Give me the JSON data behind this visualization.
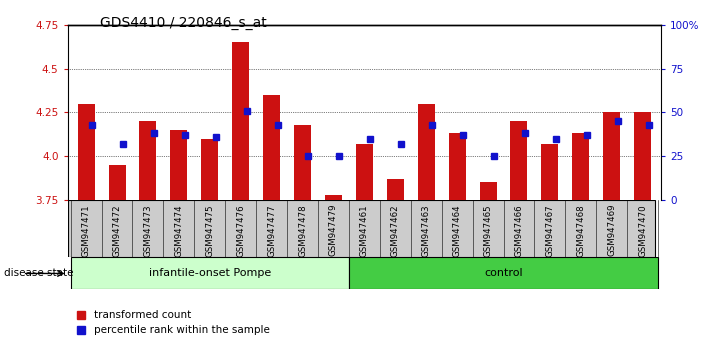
{
  "title": "GDS4410 / 220846_s_at",
  "samples": [
    "GSM947471",
    "GSM947472",
    "GSM947473",
    "GSM947474",
    "GSM947475",
    "GSM947476",
    "GSM947477",
    "GSM947478",
    "GSM947479",
    "GSM947461",
    "GSM947462",
    "GSM947463",
    "GSM947464",
    "GSM947465",
    "GSM947466",
    "GSM947467",
    "GSM947468",
    "GSM947469",
    "GSM947470"
  ],
  "red_values": [
    4.3,
    3.95,
    4.2,
    4.15,
    4.1,
    4.65,
    4.35,
    4.18,
    3.78,
    4.07,
    3.87,
    4.3,
    4.13,
    3.85,
    4.2,
    4.07,
    4.13,
    4.25,
    4.25
  ],
  "blue_y": [
    4.18,
    4.07,
    4.13,
    4.12,
    4.11,
    4.26,
    4.18,
    4.0,
    4.0,
    4.1,
    4.07,
    4.18,
    4.12,
    4.0,
    4.13,
    4.1,
    4.12,
    4.2,
    4.18
  ],
  "group1_label": "infantile-onset Pompe",
  "group2_label": "control",
  "group1_count": 9,
  "group2_count": 10,
  "y_min": 3.75,
  "y_max": 4.75,
  "y_ticks_left": [
    3.75,
    4.0,
    4.25,
    4.5,
    4.75
  ],
  "y_ticks_right_vals": [
    0,
    25,
    50,
    75,
    100
  ],
  "y_ticks_right_labels": [
    "0",
    "25",
    "50",
    "75",
    "100%"
  ],
  "bar_bottom": 3.75,
  "bar_color_red": "#cc1111",
  "bar_color_blue": "#1111cc",
  "group1_bg": "#ccffcc",
  "group2_bg": "#44cc44",
  "tick_bg": "#cccccc",
  "legend_red": "transformed count",
  "legend_blue": "percentile rank within the sample",
  "disease_state_label": "disease state",
  "title_fontsize": 10,
  "tick_fontsize": 7.5
}
